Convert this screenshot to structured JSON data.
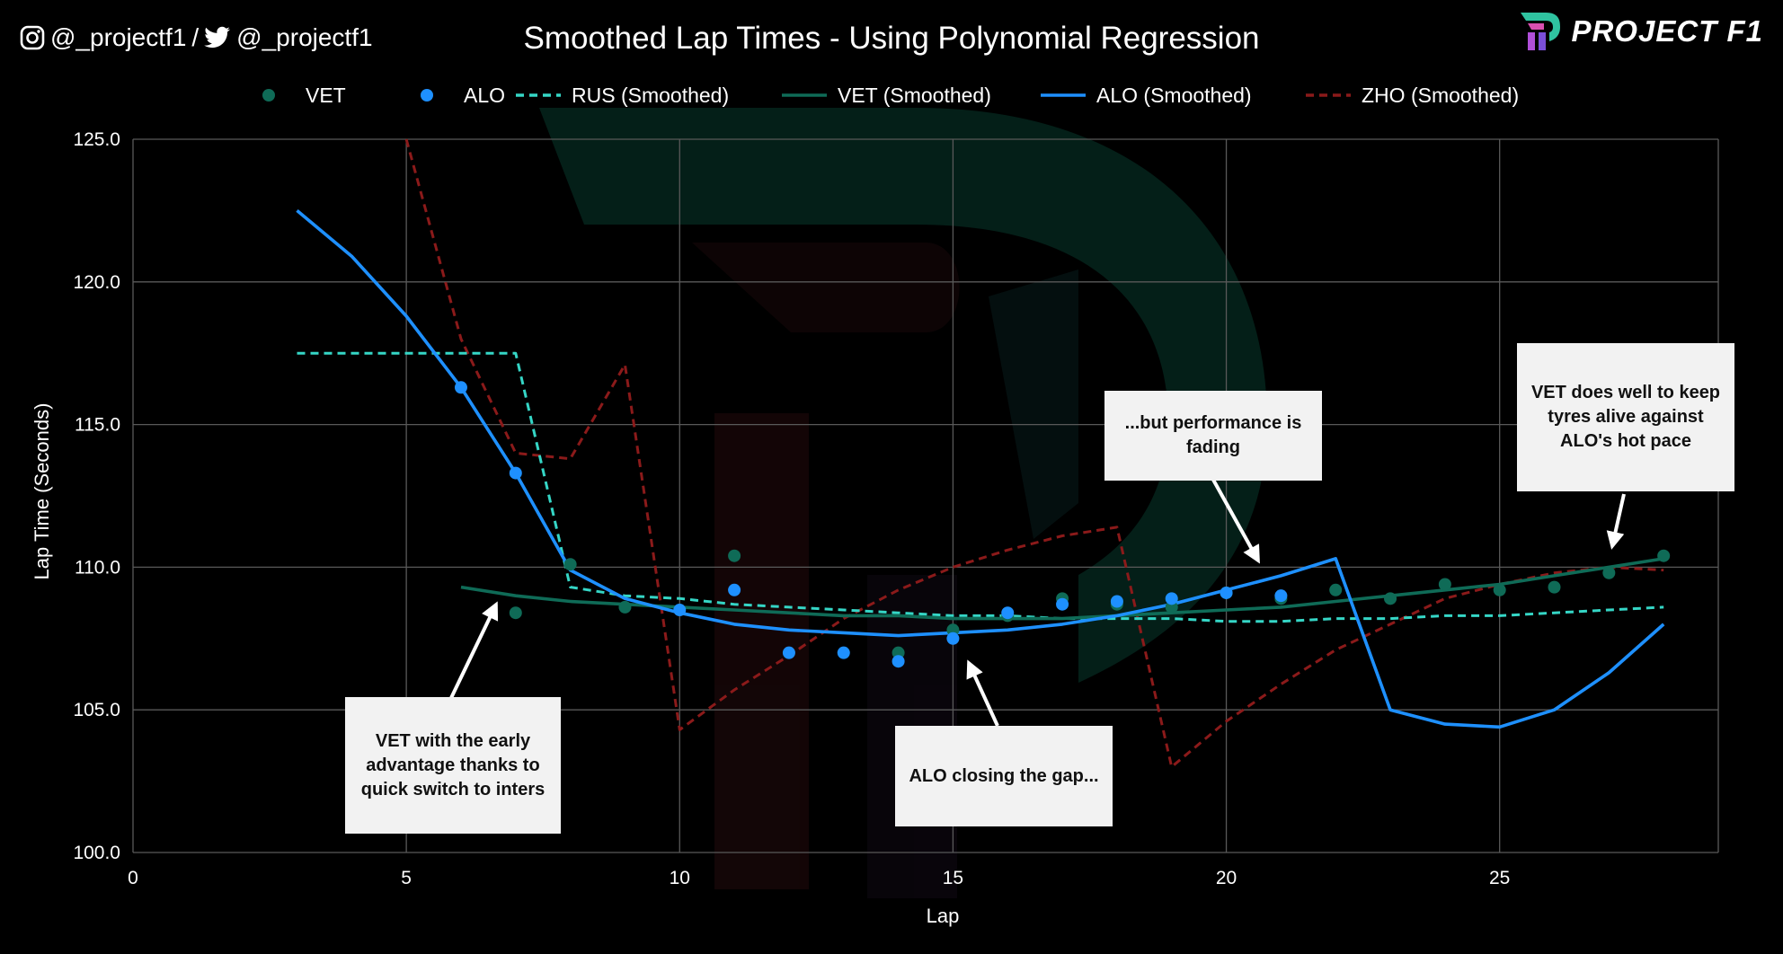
{
  "header": {
    "instagram_handle": "@_projectf1",
    "separator": "/",
    "twitter_handle": "@_projectf1",
    "brand_name": "PROJECT F1"
  },
  "colors": {
    "background": "#000000",
    "grid": "#595959",
    "vet_points": "#0f6b57",
    "alo_points": "#1e90ff",
    "rus_smoothed": "#35d6c6",
    "vet_smoothed": "#0f6b57",
    "alo_smoothed": "#1e90ff",
    "zho_smoothed": "#8b1a1a"
  },
  "chart_data": {
    "type": "line",
    "title": "Smoothed Lap Times - Using Polynomial Regression",
    "xlabel": "Lap",
    "ylabel": "Lap Time (Seconds)",
    "xlim": [
      0,
      29
    ],
    "ylim": [
      100,
      125
    ],
    "xticks": [
      0,
      5,
      10,
      15,
      20,
      25
    ],
    "yticks": [
      100,
      105,
      110,
      115,
      120,
      125
    ],
    "xtick_labels": [
      "0",
      "5",
      "10",
      "15",
      "20",
      "25"
    ],
    "ytick_labels": [
      "100.0",
      "105.0",
      "110.0",
      "115.0",
      "120.0",
      "125.0"
    ],
    "grid": true,
    "legend_position": "top",
    "series": [
      {
        "name": "VET",
        "kind": "scatter",
        "x": [
          7,
          8,
          9,
          11,
          14,
          15,
          16,
          17,
          18,
          19,
          20,
          21,
          22,
          23,
          24,
          25,
          26,
          27,
          28
        ],
        "y": [
          108.4,
          110.1,
          108.6,
          110.4,
          107.0,
          107.8,
          108.3,
          108.9,
          108.7,
          108.6,
          109.1,
          108.9,
          109.2,
          108.9,
          109.4,
          109.2,
          109.3,
          109.8,
          110.4
        ]
      },
      {
        "name": "ALO",
        "kind": "scatter",
        "x": [
          6,
          7,
          10,
          11,
          12,
          13,
          14,
          15,
          16,
          17,
          18,
          19,
          20,
          21
        ],
        "y": [
          116.3,
          113.3,
          108.5,
          109.2,
          107.0,
          107.0,
          106.7,
          107.5,
          108.4,
          108.7,
          108.8,
          108.9,
          109.1,
          109.0
        ]
      },
      {
        "name": "RUS (Smoothed)",
        "kind": "line",
        "dash": true,
        "x": [
          3,
          4,
          5,
          6,
          7,
          8,
          9,
          10,
          11,
          12,
          13,
          14,
          15,
          16,
          17,
          18,
          19,
          20,
          21,
          22,
          23,
          24,
          25,
          26,
          27,
          28
        ],
        "y": [
          117.5,
          117.5,
          117.5,
          117.5,
          117.5,
          109.3,
          109.0,
          108.9,
          108.7,
          108.6,
          108.5,
          108.4,
          108.3,
          108.3,
          108.2,
          108.2,
          108.2,
          108.1,
          108.1,
          108.2,
          108.2,
          108.3,
          108.3,
          108.4,
          108.5,
          108.6
        ]
      },
      {
        "name": "VET (Smoothed)",
        "kind": "line",
        "dash": false,
        "x": [
          6,
          7,
          8,
          9,
          10,
          11,
          12,
          13,
          14,
          15,
          16,
          17,
          18,
          19,
          20,
          21,
          22,
          23,
          24,
          25,
          26,
          27,
          28
        ],
        "y": [
          109.3,
          109.0,
          108.8,
          108.7,
          108.6,
          108.5,
          108.4,
          108.3,
          108.3,
          108.2,
          108.2,
          108.2,
          108.3,
          108.4,
          108.5,
          108.6,
          108.8,
          109.0,
          109.2,
          109.4,
          109.7,
          110.0,
          110.3
        ]
      },
      {
        "name": "ALO (Smoothed)",
        "kind": "line",
        "dash": false,
        "x": [
          3,
          4,
          5,
          6,
          7,
          8,
          9,
          10,
          11,
          12,
          13,
          14,
          15,
          16,
          17,
          18,
          19,
          20,
          21,
          22,
          23,
          24,
          25,
          26,
          27,
          28
        ],
        "y": [
          122.5,
          120.9,
          118.8,
          116.3,
          113.3,
          109.9,
          108.9,
          108.4,
          108.0,
          107.8,
          107.7,
          107.6,
          107.7,
          107.8,
          108.0,
          108.3,
          108.7,
          109.2,
          109.7,
          110.3,
          105.0,
          104.5,
          104.4,
          105.0,
          106.3,
          108.0
        ]
      },
      {
        "name": "ZHO (Smoothed)",
        "kind": "line",
        "dash": true,
        "x": [
          5,
          6,
          7,
          8,
          9,
          10,
          11,
          12,
          13,
          14,
          15,
          16,
          17,
          18,
          19,
          20,
          21,
          22,
          23,
          24,
          25,
          26,
          27,
          28
        ],
        "y": [
          125.0,
          118.0,
          114.0,
          113.8,
          117.1,
          104.3,
          105.7,
          106.9,
          108.2,
          109.2,
          110.0,
          110.6,
          111.1,
          111.4,
          103.0,
          104.6,
          105.9,
          107.1,
          108.0,
          108.9,
          109.4,
          109.8,
          110.0,
          109.9
        ]
      }
    ],
    "annotations": [
      {
        "text": "VET with the early advantage thanks to quick switch to inters"
      },
      {
        "text": "ALO closing the gap..."
      },
      {
        "text": "...but performance is fading"
      },
      {
        "text": "VET does well to keep tyres alive against ALO's hot pace"
      }
    ]
  }
}
